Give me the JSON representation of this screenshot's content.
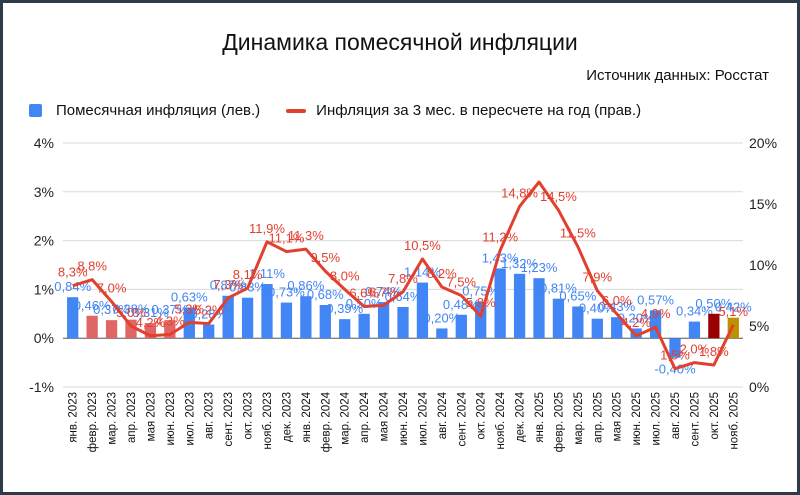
{
  "title": "Динамика помесячной инфляции",
  "source": "Источник данных: Росстат",
  "legend": {
    "bar": "Помесячная инфляция (лев.)",
    "line": "Инфляция за 3 мес. в пересчете на год (прав.)"
  },
  "colors": {
    "bar": "#4285f4",
    "bar_alt": "#e06666",
    "line": "#e2402f",
    "oct_2025": "#990000",
    "nov_2025": "#bf9000"
  },
  "chart_data": {
    "type": "bar",
    "title": "Динамика помесячной инфляции",
    "categories": [
      "янв. 2023",
      "февр. 2023",
      "мар. 2023",
      "апр. 2023",
      "мая 2023",
      "июн. 2023",
      "июл. 2023",
      "авг. 2023",
      "сент. 2023",
      "окт. 2023",
      "нояб. 2023",
      "дек. 2023",
      "янв. 2024",
      "февр. 2024",
      "мар. 2024",
      "апр. 2024",
      "мая 2024",
      "июн. 2024",
      "июл. 2024",
      "авг. 2024",
      "сент. 2024",
      "окт. 2024",
      "нояб. 2024",
      "дек. 2024",
      "янв. 2025",
      "февр. 2025",
      "мар. 2025",
      "апр. 2025",
      "мая 2025",
      "июн. 2025",
      "июл. 2025",
      "авг. 2025",
      "сент. 2025",
      "окт. 2025",
      "нояб. 2025"
    ],
    "left_axis": {
      "ticks": [
        "-1%",
        "0%",
        "1%",
        "2%",
        "3%",
        "4%"
      ],
      "ylim": [
        -1,
        4
      ]
    },
    "right_axis": {
      "ticks": [
        "0%",
        "5%",
        "10%",
        "15%",
        "20%"
      ],
      "ylim": [
        0,
        20
      ]
    },
    "series": [
      {
        "name": "Помесячная инфляция (лев.)",
        "axis": "left",
        "type": "bar",
        "values": [
          0.84,
          0.46,
          0.37,
          0.38,
          0.31,
          0.37,
          0.63,
          0.28,
          0.87,
          0.83,
          1.11,
          0.73,
          0.86,
          0.68,
          0.39,
          0.5,
          0.74,
          0.64,
          1.14,
          0.2,
          0.48,
          0.75,
          1.43,
          1.32,
          1.23,
          0.81,
          0.65,
          0.4,
          0.43,
          0.2,
          0.57,
          -0.4,
          0.34,
          0.5,
          0.42
        ],
        "labels": [
          "0,84%",
          "0,46%",
          "0,37%",
          "0,38%",
          "0,31%",
          "0,37%",
          "0,63%",
          "0,28%",
          "0,87%",
          "0,83%",
          "1,11%",
          "0,73%",
          "0,86%",
          "0,68%",
          "0,39%",
          "0,50%",
          "0,74%",
          "0,64%",
          "1,14%",
          "0,20%",
          "0,48%",
          "0,75%",
          "1,43%",
          "1,32%",
          "1,23%",
          "0,81%",
          "0,65%",
          "0,40%",
          "0,43%",
          "0,20%",
          "0,57%",
          "-0,40%",
          "0,34%",
          "0,50%",
          "0,42%"
        ]
      },
      {
        "name": "Инфляция за 3 мес. в пересчете на год (прав.)",
        "axis": "right",
        "type": "line",
        "values": [
          8.3,
          8.8,
          7.0,
          5.0,
          4.2,
          4.3,
          5.3,
          5.2,
          7.3,
          8.1,
          11.9,
          11.1,
          11.3,
          9.5,
          8.0,
          6.6,
          6.7,
          7.8,
          10.5,
          8.2,
          7.5,
          5.8,
          11.2,
          14.8,
          16.8,
          14.5,
          11.5,
          7.9,
          6.0,
          4.2,
          4.9,
          1.5,
          2.0,
          1.8,
          5.1
        ],
        "labels": [
          "8,3%",
          "8,8%",
          "7,0%",
          "5,0%",
          "4,2%",
          "4,3%",
          "5,3%",
          "5,2%",
          "7,3%",
          "8,1%",
          "11,9%",
          "11,1%",
          "11,3%",
          "9,5%",
          "8,0%",
          "6,6%",
          "6,7%",
          "7,8%",
          "10,5%",
          "8,2%",
          "7,5%",
          "5,8%",
          "11,2%",
          "14,8%",
          "",
          "14,5%",
          "11,5%",
          "7,9%",
          "6,0%",
          "4,2%",
          "4,9%",
          "1,5%",
          "2,0%",
          "1,8%",
          "5,1%"
        ]
      }
    ]
  }
}
